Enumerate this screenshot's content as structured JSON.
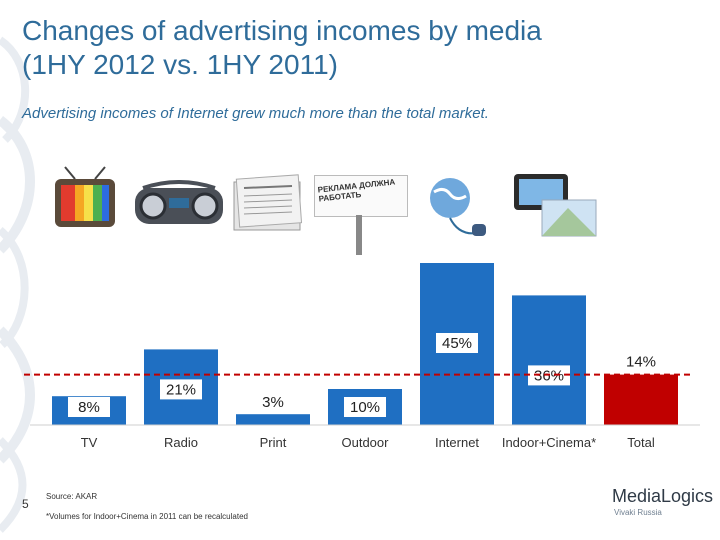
{
  "header": {
    "title_line1": "Changes of advertising incomes by media",
    "title_line2": "(1HY 2012 vs. 1HY 2011)",
    "subtitle": "Advertising incomes of Internet grew much more than the total market."
  },
  "footer": {
    "page_number": "5",
    "source": "Source: AKAR",
    "footnote": "*Volumes for Indoor+Cinema in 2011 can be recalculated",
    "logo": "MediaLogics",
    "logo_sub": "Vivaki Russia",
    "billboard_text": "РЕКЛАМА ДОЛЖНА РАБОТАТЬ"
  },
  "colors": {
    "accent": "#2f6c9a",
    "bar": "#1f6fc2",
    "total_bar": "#c00000",
    "reference_line": "#c00000"
  },
  "icons": [
    "tv-icon",
    "radio-icon",
    "newspaper-icon",
    "billboard-icon",
    "internet-icon",
    "cinema-icon"
  ],
  "chart_data": {
    "type": "bar",
    "categories": [
      "TV",
      "Radio",
      "Print",
      "Outdoor",
      "Internet",
      "Indoor+Cinema*",
      "Total"
    ],
    "values": [
      8,
      21,
      3,
      10,
      45,
      36,
      14
    ],
    "labels": [
      "8%",
      "21%",
      "3%",
      "10%",
      "45%",
      "36%",
      "14%"
    ],
    "highlight": "Total",
    "reference_line_value": 14,
    "ylim": [
      0,
      50
    ]
  }
}
